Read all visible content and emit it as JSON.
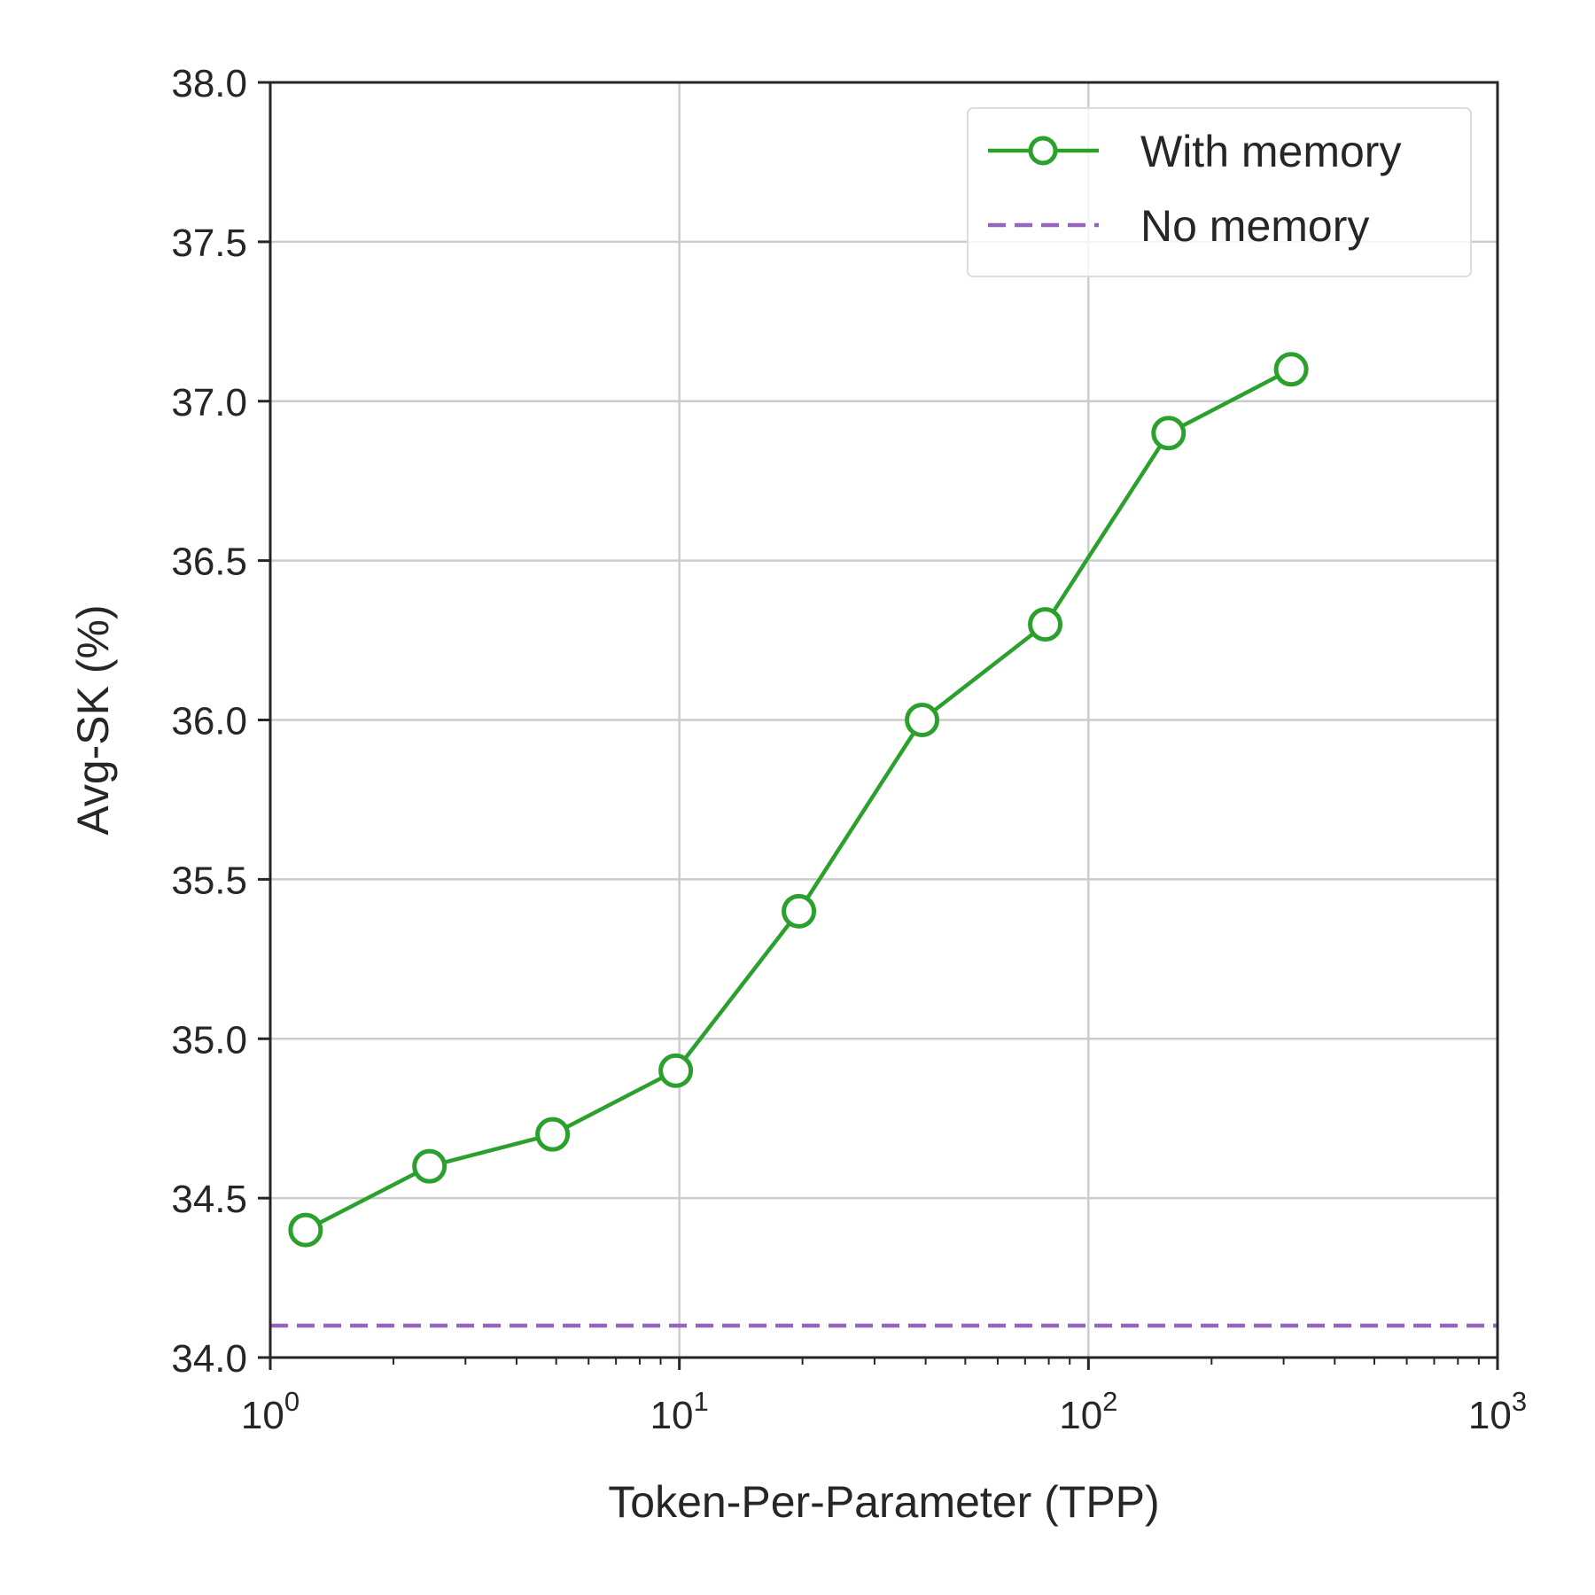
{
  "chart_data": {
    "type": "line",
    "xlabel": "Token-Per-Parameter (TPP)",
    "ylabel": "Avg-SK (%)",
    "xscale": "log",
    "xlim": [
      1,
      1000
    ],
    "ylim": [
      34.0,
      38.0
    ],
    "x_ticks": [
      {
        "value": 1,
        "base": "10",
        "exp": "0"
      },
      {
        "value": 10,
        "base": "10",
        "exp": "1"
      },
      {
        "value": 100,
        "base": "10",
        "exp": "2"
      },
      {
        "value": 1000,
        "base": "10",
        "exp": "3"
      }
    ],
    "y_ticks": [
      "34.0",
      "34.5",
      "35.0",
      "35.5",
      "36.0",
      "36.5",
      "37.0",
      "37.5",
      "38.0"
    ],
    "grid": true,
    "legend_position": "top-right",
    "series": [
      {
        "name": "With memory",
        "style": "solid-line-open-circles",
        "color": "#2ca02c",
        "x": [
          1.22,
          2.45,
          4.9,
          9.8,
          19.6,
          39.2,
          78.4,
          157,
          313
        ],
        "y": [
          34.4,
          34.6,
          34.7,
          34.9,
          35.4,
          36.0,
          36.3,
          36.9,
          37.1
        ]
      },
      {
        "name": "No memory",
        "style": "dashed-line",
        "color": "#9467bd",
        "y": 34.1
      }
    ]
  }
}
